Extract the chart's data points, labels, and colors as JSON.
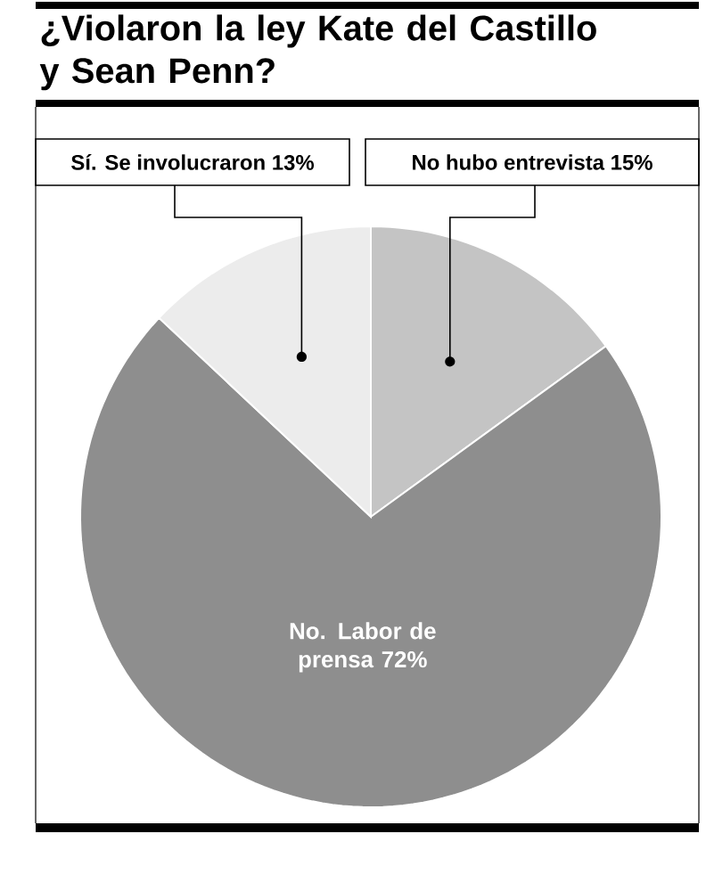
{
  "chart_data": {
    "type": "pie",
    "title": "¿Violaron la ley Kate del Castillo y Sean Penn?",
    "categories": [
      "No hubo entrevista 15%",
      "No. Labor de prensa 72%",
      "Sí. Se involucraron 13%"
    ],
    "values": [
      15,
      72,
      13
    ],
    "colors": [
      "#c4c4c4",
      "#8e8e8e",
      "#ececec"
    ]
  }
}
